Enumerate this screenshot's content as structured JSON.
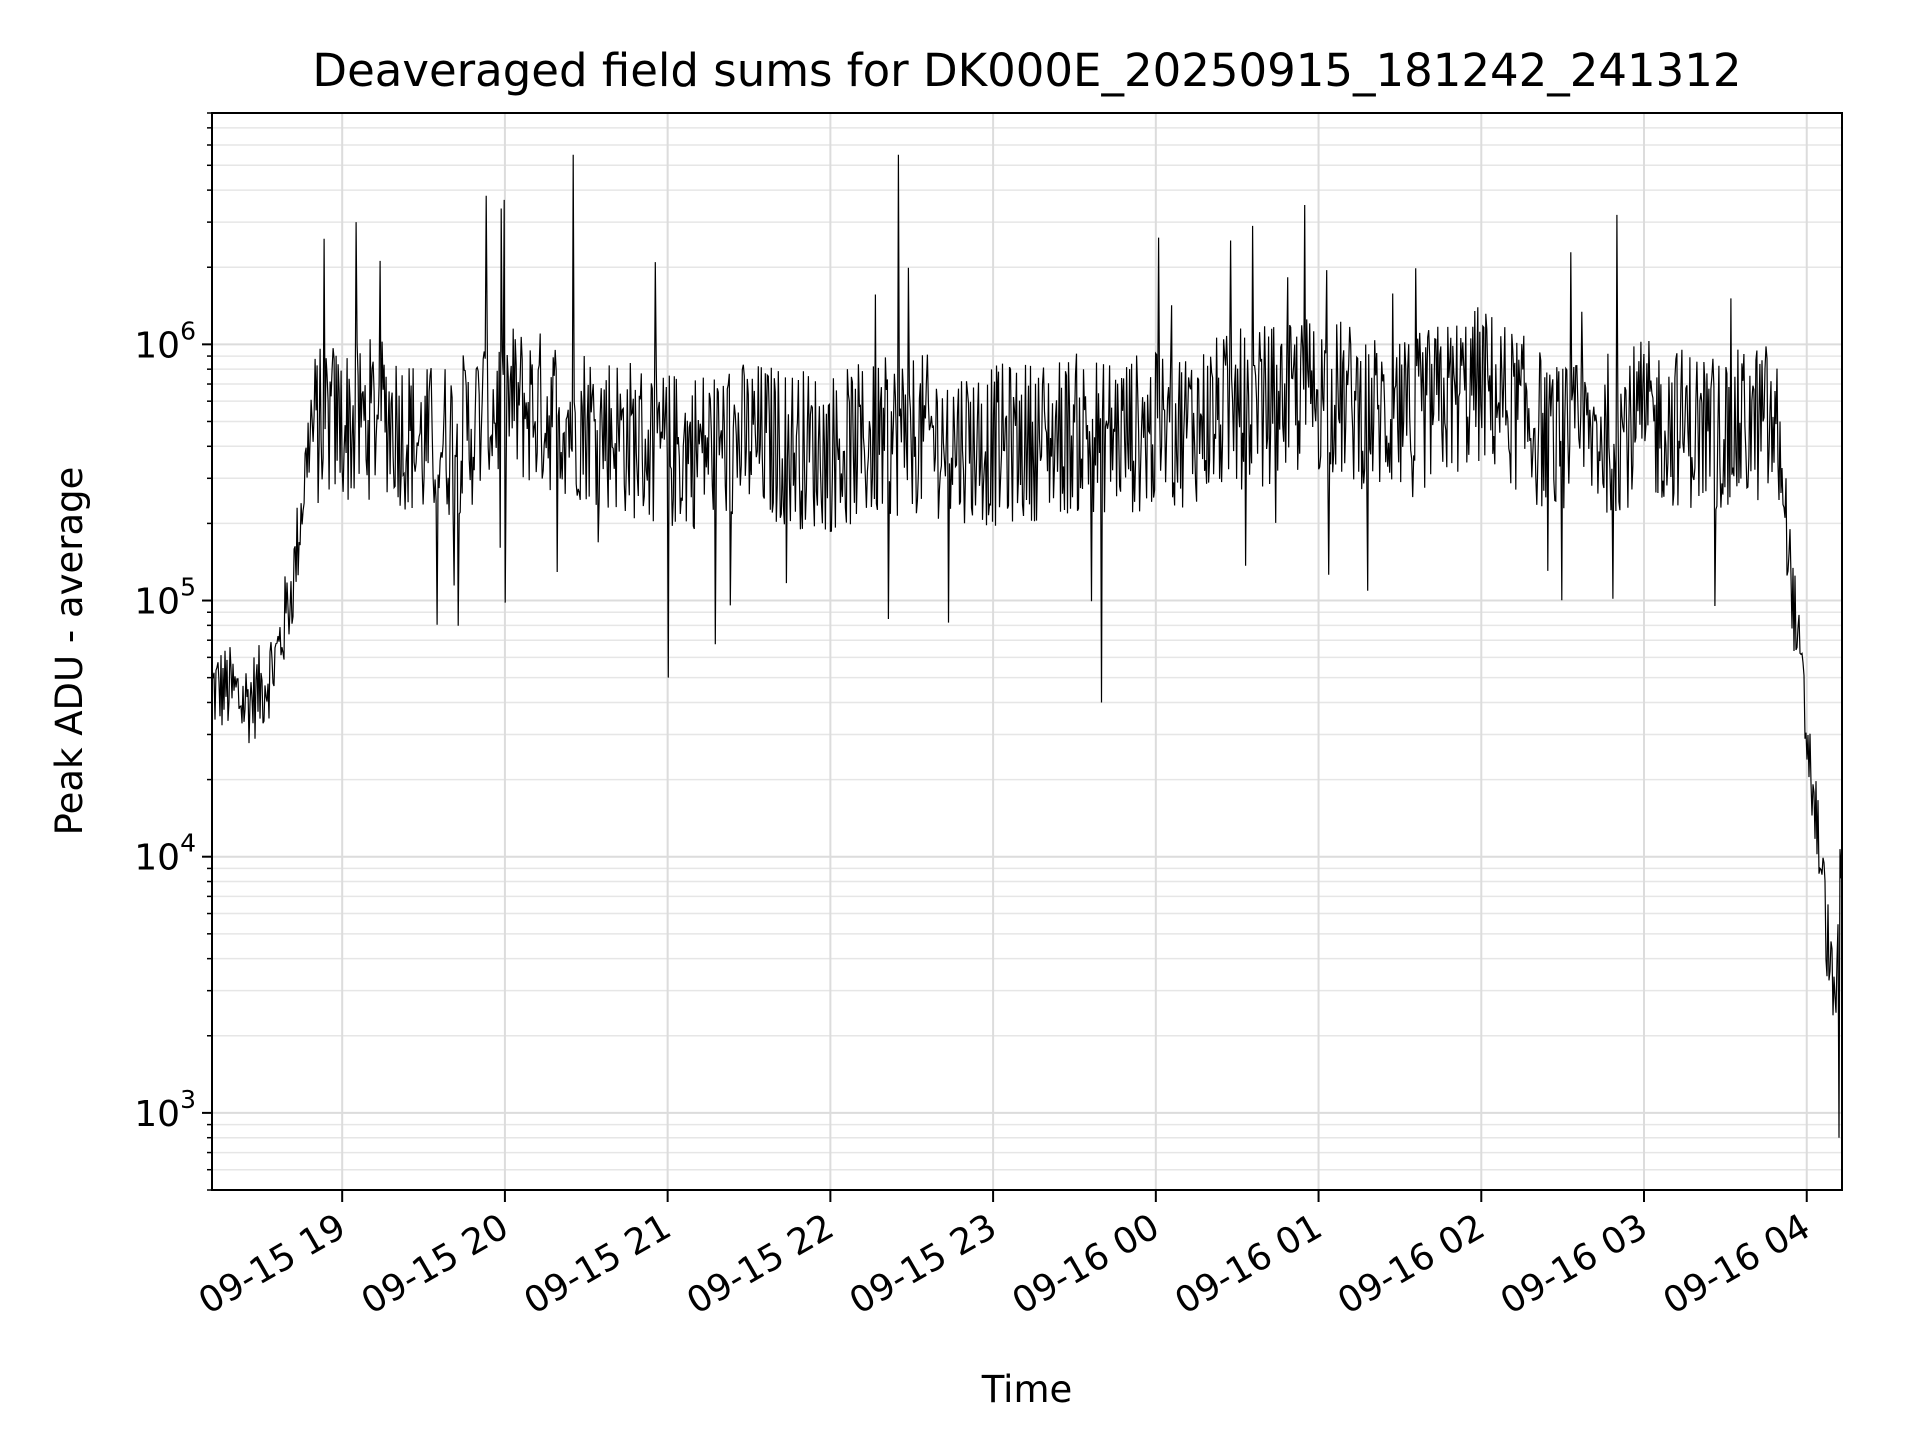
{
  "chart_data": {
    "type": "line",
    "title": "Deaveraged field sums for DK000E_20250915_181242_241312",
    "xlabel": "Time",
    "ylabel": "Peak ADU - average",
    "yscale": "log",
    "grid": true,
    "line_color": "#000000",
    "xlim": [
      "09-15 18:12",
      "09-16 04:13"
    ],
    "ylim": [
      500,
      8000000
    ],
    "x_ticks": [
      "09-15 19",
      "09-15 20",
      "09-15 21",
      "09-15 22",
      "09-15 23",
      "09-16 00",
      "09-16 01",
      "09-16 02",
      "09-16 03",
      "09-16 04"
    ],
    "y_ticks": [
      {
        "base": "10",
        "exp": "3",
        "value": 1000
      },
      {
        "base": "10",
        "exp": "4",
        "value": 10000
      },
      {
        "base": "10",
        "exp": "5",
        "value": 100000
      },
      {
        "base": "10",
        "exp": "6",
        "value": 1000000
      }
    ],
    "series": [
      {
        "x": [
          "09-15 18:12",
          "09-15 18:18",
          "09-15 18:24",
          "09-15 18:30",
          "09-15 18:36",
          "09-15 18:42",
          "09-15 18:48",
          "09-15 18:55",
          "09-15 19:05",
          "09-15 19:15",
          "09-15 19:30",
          "09-15 19:45",
          "09-15 20:00",
          "09-15 20:30",
          "09-15 21:00",
          "09-15 21:30",
          "09-15 22:00",
          "09-15 22:30",
          "09-15 23:00",
          "09-15 23:30",
          "09-16 00:00",
          "09-16 00:30",
          "09-16 01:00",
          "09-16 01:30",
          "09-16 02:00",
          "09-16 02:30",
          "09-16 03:00",
          "09-16 03:30",
          "09-16 03:45",
          "09-16 03:50",
          "09-16 03:55",
          "09-16 04:00",
          "09-16 04:05",
          "09-16 04:10",
          "09-16 04:13"
        ],
        "y": [
          45000,
          45000,
          40000,
          45000,
          60000,
          120000,
          450000,
          500000,
          480000,
          550000,
          400000,
          450000,
          600000,
          500000,
          380000,
          420000,
          380000,
          450000,
          400000,
          450000,
          450000,
          550000,
          650000,
          500000,
          700000,
          400000,
          500000,
          450000,
          500000,
          400000,
          100000,
          30000,
          10000,
          2500,
          10000
        ]
      }
    ],
    "noise": {
      "spikes_high": [
        {
          "x": "09-15 19:05",
          "y": 3000000
        },
        {
          "x": "09-15 19:53",
          "y": 3800000
        },
        {
          "x": "09-15 20:25",
          "y": 5500000
        },
        {
          "x": "09-15 22:25",
          "y": 5500000
        },
        {
          "x": "09-16 00:55",
          "y": 3500000
        },
        {
          "x": "09-16 02:50",
          "y": 3200000
        }
      ],
      "spikes_low": [
        {
          "x": "09-15 21:00",
          "y": 50000
        },
        {
          "x": "09-15 23:40",
          "y": 40000
        },
        {
          "x": "09-16 04:12",
          "y": 800
        }
      ]
    }
  }
}
